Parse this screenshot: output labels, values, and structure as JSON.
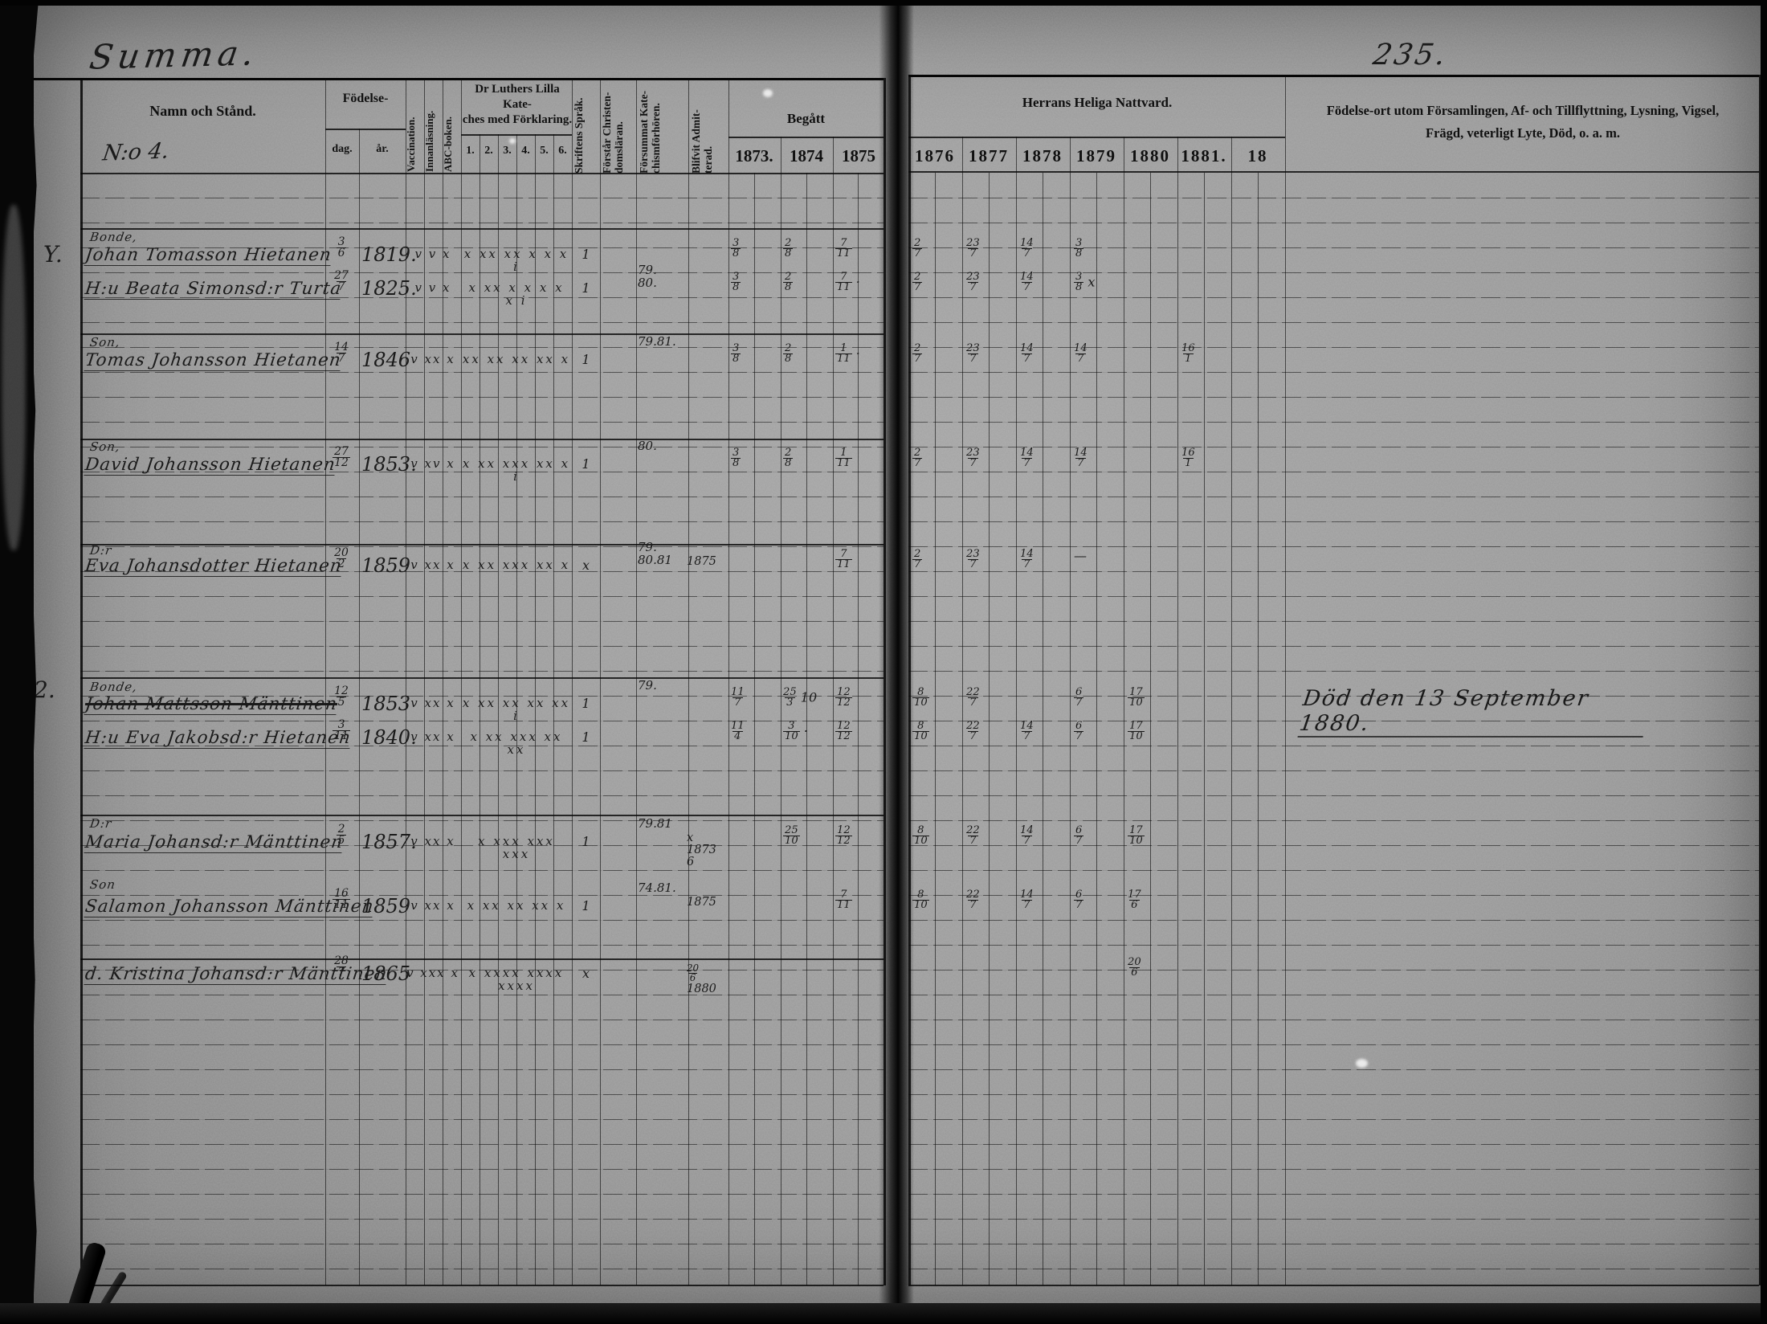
{
  "page": {
    "page_number": "235.",
    "summa_heading": "Summa.",
    "no_label": "N:o 4."
  },
  "headers": {
    "namn": "Namn och Stånd.",
    "fodelse": "Födelse-",
    "dag": "dag.",
    "ar": "år.",
    "vaccination": "Vaccination.",
    "innanlasning": "Innanläsning.",
    "abc_boken": "ABC-boken.",
    "luther_line1": "Dr Luthers Lilla Kate-",
    "luther_line2": "ches med Förklaring.",
    "katekes_numbers": [
      "1.",
      "2.",
      "3.",
      "4.",
      "5.",
      "6."
    ],
    "skriftens": "Skriftens Språk.",
    "forstar": "Förstår Christen- domsläran.",
    "forsummat": "Försummat Kate- chismförhören.",
    "blifvit": "Blifvit Admit- terad.",
    "begatt": "Begått",
    "nattvard": "Herrans Heliga Nattvard.",
    "years_left": [
      "1873.",
      "1874",
      "1875"
    ],
    "years_right": [
      "1876",
      "1877",
      "1878",
      "1879",
      "1880",
      "1881.",
      "18"
    ],
    "right_col_line1": "Födelse-ort utom Församlingen, Af- och Tillflyttning, Lysning, Vigsel,",
    "right_col_line2": "Frägd, veterligt Lyte, Död, o. a. m."
  },
  "rows": [
    {
      "margin": "Y.",
      "label": "Bonde,",
      "name": "Johan Tomasson Hietanen",
      "day": "3/6",
      "year": "1819.",
      "reading": "v v x",
      "katekes": "x xx xx x x x i",
      "skrift": "1",
      "y1873": "3/8",
      "y1874": "2/8",
      "y1875": "7/11",
      "y1876": "2/7",
      "y1877": "23/7",
      "y1878": "14/7",
      "y1879": "3/8"
    },
    {
      "name": "H:u Beata Simonsd:r Turta",
      "day": "27/7",
      "year": "1825.",
      "reading": "v v x",
      "katekes": "x xx x x x x x i",
      "skrift": "1",
      "forsummat": "79.\n80.",
      "y1873": "3/8",
      "y1874": "2/8",
      "y1875": "7/11 ·",
      "y1876": "2/7",
      "y1877": "23/7",
      "y1878": "14/7",
      "y1879": "3/8 x"
    },
    {
      "label": "Son,",
      "name": "Tomas Johansson Hietanen",
      "day": "14/7",
      "year": "1846",
      "reading": "v xx x",
      "katekes": "xx xx xx xx x",
      "skrift": "1",
      "forsummat": "79.81.",
      "y1873": "3/8",
      "y1874": "2/8",
      "y1875": "1/11 ·",
      "y1876": "2/7",
      "y1877": "23/7",
      "y1878": "14/7",
      "y1879": "14/7",
      "y1881": "16/1"
    },
    {
      "label": "Son,",
      "name": "David Johansson Hietanen",
      "day": "27/12",
      "year": "1853.",
      "reading": "v xv x",
      "katekes": "x xx xxx xx x i",
      "skrift": "1",
      "forsummat": "80.",
      "y1873": "3/8",
      "y1874": "2/8",
      "y1875": "1/11",
      "y1876": "2/7",
      "y1877": "23/7",
      "y1878": "14/7",
      "y1879": "14/7",
      "y1881": "16/1"
    },
    {
      "label": "D:r",
      "name": "Eva Johansdotter Hietanen",
      "day": "20/2",
      "year": "1859",
      "reading": "v xx x",
      "katekes": "x xx xxx xx x",
      "skrift": "x",
      "forsummat": "79.\n80.81",
      "admitted": "1875",
      "y1875": "7/11",
      "y1876": "2/7",
      "y1877": "23/7",
      "y1878": "14/7",
      "y1879": "—"
    },
    {
      "margin": "2.",
      "label": "Bonde,",
      "name": "Johan Mattsson Mänttinen",
      "struck": true,
      "day": "12/5",
      "year": "1853",
      "reading": "v xx x",
      "katekes": "x xx xx xx xx i",
      "skrift": "1",
      "forsummat": "79.",
      "y1873": "11/7",
      "y1874": "25/3 10",
      "y1875": "12/12",
      "y1876": "8/10",
      "y1877": "22/7",
      "y1879": "6/7",
      "y1880": "17/10"
    },
    {
      "name": "H:u Eva Jakobsd:r Hietanen",
      "day": "3/11",
      "year": "1840.",
      "reading": "v xx x",
      "katekes": "x xx xxx xx xx",
      "skrift": "1",
      "y1873": "11/4",
      "y1874": "3/10 ·",
      "y1875": "12/12",
      "y1876": "8/10",
      "y1877": "22/7",
      "y1878": "14/7",
      "y1879": "6/7",
      "y1880": "17/10"
    },
    {
      "label": "D:r",
      "name": "Maria Johansd:r Mänttinen",
      "day": "2/5",
      "year": "1857.",
      "reading": "v xx x",
      "katekes": "x xxx xxx xxx",
      "skrift": "1",
      "forsummat": "79.81",
      "admitted": "x\n1873 6",
      "y1874": "25/10",
      "y1875": "12/12",
      "y1876": "8/10",
      "y1877": "22/7",
      "y1878": "14/7",
      "y1879": "6/7",
      "y1880": "17/10"
    },
    {
      "label": "Son",
      "name": "Salamon Johansson Mänttinen",
      "day": "16/11",
      "year": "1859",
      "reading": "v xx x",
      "katekes": "x xx xx xx x",
      "skrift": "1",
      "forsummat": "74.81.",
      "admitted": "1875",
      "y1875": "7/11",
      "y1876": "8/10",
      "y1877": "22/7",
      "y1878": "14/7",
      "y1879": "6/7",
      "y1880": "17/6"
    },
    {
      "name": "d. Kristina Johansd:r Mänttinen",
      "day": "28/7",
      "year": "1865",
      "reading": "v xxx x",
      "katekes": "x xxxx xxxx xxxx",
      "skrift": "x",
      "admitted": "20/6\n1880",
      "y1880": "20/6"
    }
  ],
  "notes": {
    "death_note": "Död den 13 September 1880."
  }
}
